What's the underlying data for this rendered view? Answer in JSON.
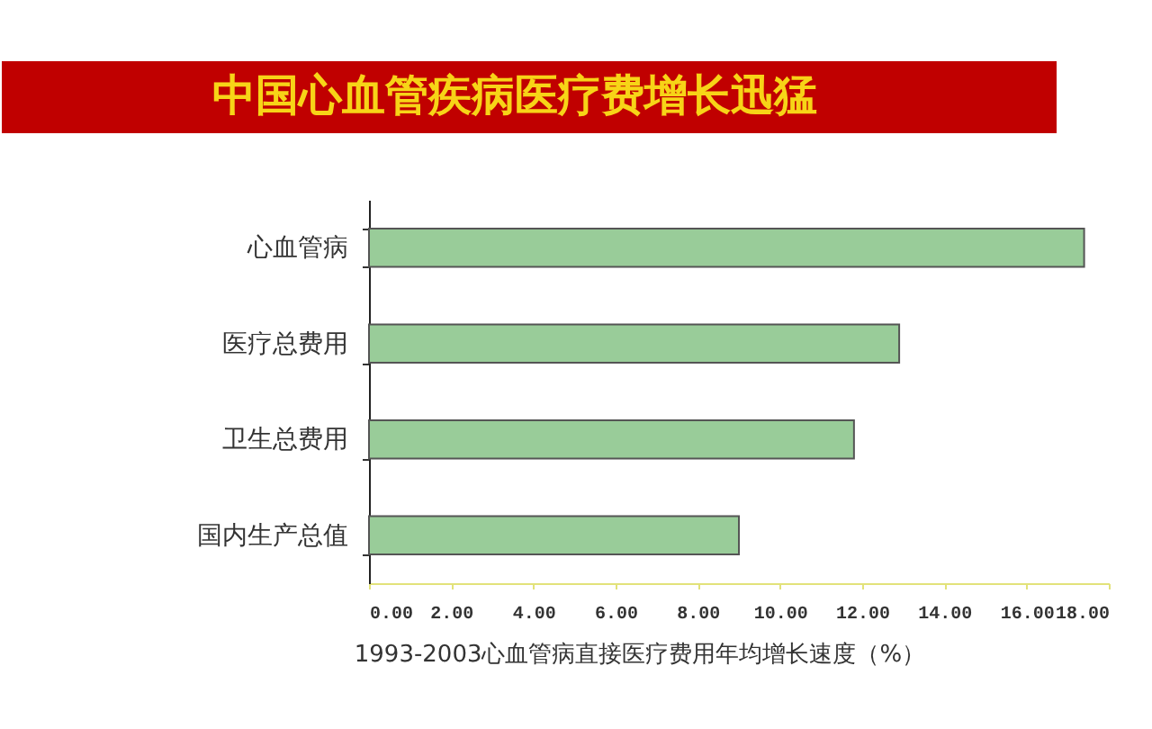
{
  "chart_data": {
    "type": "bar",
    "orientation": "horizontal",
    "title": "中国心血管疾病医疗费增长迅猛",
    "xlabel": "1993-2003心血管病直接医疗费用年均增长速度（%）",
    "categories": [
      "心血管病",
      "医疗总费用",
      "卫生总费用",
      "国内生产总值"
    ],
    "values": [
      17.4,
      12.9,
      11.8,
      9.0
    ],
    "color": "#99cc99",
    "xlim": [
      0,
      18
    ],
    "xticks": [
      {
        "value": 0,
        "label": "0.00"
      },
      {
        "value": 2,
        "label": "2.00"
      },
      {
        "value": 4,
        "label": "4.00"
      },
      {
        "value": 6,
        "label": "6.00"
      },
      {
        "value": 8,
        "label": "8.00"
      },
      {
        "value": 10,
        "label": "10.00"
      },
      {
        "value": 12,
        "label": "12.00"
      },
      {
        "value": 14,
        "label": "14.00"
      },
      {
        "value": 16,
        "label": "16.00"
      },
      {
        "value": 18,
        "label": "18.00"
      }
    ]
  }
}
